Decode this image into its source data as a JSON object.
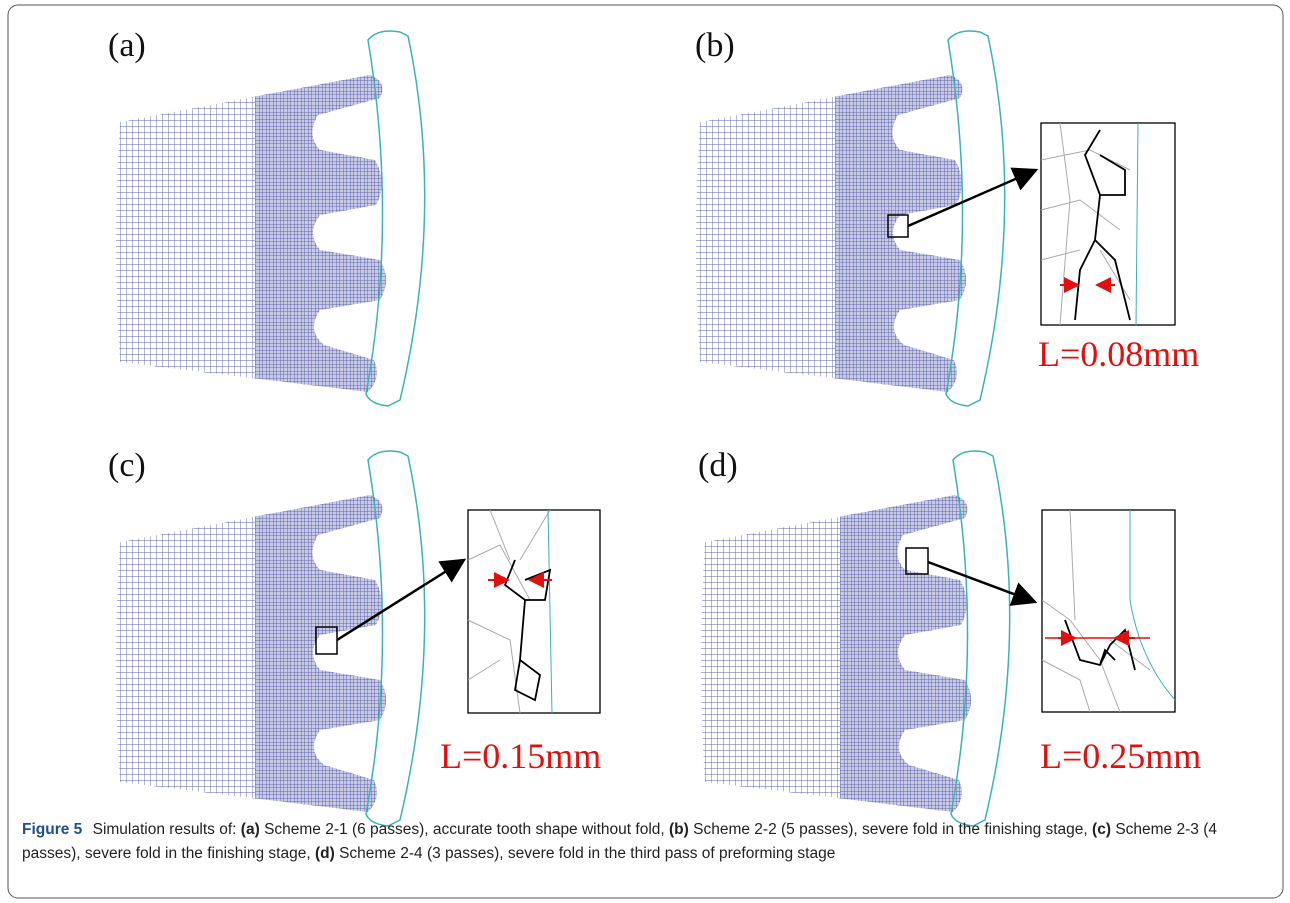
{
  "panels": [
    {
      "label": "(a)"
    },
    {
      "label": "(b)",
      "annotation": "L=0.08mm"
    },
    {
      "label": "(c)",
      "annotation": "L=0.15mm"
    },
    {
      "label": "(d)",
      "annotation": "L=0.25mm"
    }
  ],
  "caption": {
    "label": "Figure 5",
    "intro": "Simulation results of:",
    "items": [
      {
        "tag": "(a)",
        "text": "Scheme 2-1 (6 passes), accurate tooth shape without fold,"
      },
      {
        "tag": "(b)",
        "text": "Scheme 2-2 (5 passes), severe fold in the finishing stage,"
      },
      {
        "tag": "(c)",
        "text": "Scheme 2-3 (4 passes), severe fold in the finishing stage,"
      },
      {
        "tag": "(d)",
        "text": "Scheme 2-4 (3 passes), severe fold in the third pass of preforming stage"
      }
    ]
  }
}
